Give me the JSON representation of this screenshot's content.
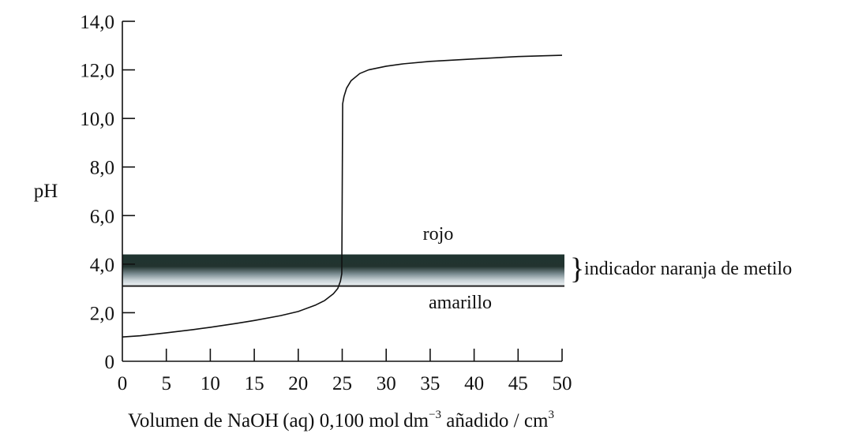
{
  "chart_data": {
    "type": "line",
    "title": "",
    "ylabel": "pH",
    "xlabel_parts": {
      "main": "Volumen de NaOH (aq) 0,100 mol dm",
      "exp1": "−3",
      "middle": " añadido / cm",
      "exp2": "3"
    },
    "xlim": [
      0,
      50
    ],
    "ylim": [
      0,
      14
    ],
    "x_ticks": [
      {
        "value": 0,
        "label": "0"
      },
      {
        "value": 5,
        "label": "5"
      },
      {
        "value": 10,
        "label": "10"
      },
      {
        "value": 15,
        "label": "15"
      },
      {
        "value": 20,
        "label": "20"
      },
      {
        "value": 25,
        "label": "25"
      },
      {
        "value": 30,
        "label": "30"
      },
      {
        "value": 35,
        "label": "35"
      },
      {
        "value": 40,
        "label": "40"
      },
      {
        "value": 45,
        "label": "45"
      },
      {
        "value": 50,
        "label": "50"
      }
    ],
    "y_ticks": [
      {
        "value": 0,
        "label": "0"
      },
      {
        "value": 2,
        "label": "2,0"
      },
      {
        "value": 4,
        "label": "4,0"
      },
      {
        "value": 6,
        "label": "6,0"
      },
      {
        "value": 8,
        "label": "8,0"
      },
      {
        "value": 10,
        "label": "10,0"
      },
      {
        "value": 12,
        "label": "12,0"
      },
      {
        "value": 14,
        "label": "14,0"
      }
    ],
    "grid": false,
    "series": [
      {
        "x": [
          0,
          2,
          5,
          8,
          10,
          13,
          15,
          18,
          20,
          22,
          23,
          24,
          24.5,
          24.8,
          24.95,
          25,
          25.05,
          25.2,
          25.5,
          26,
          27,
          28,
          30,
          32,
          35,
          40,
          45,
          48,
          50
        ],
        "y": [
          1.0,
          1.05,
          1.17,
          1.3,
          1.4,
          1.56,
          1.68,
          1.88,
          2.05,
          2.32,
          2.5,
          2.78,
          3.0,
          3.3,
          3.6,
          7.0,
          10.6,
          10.9,
          11.25,
          11.55,
          11.85,
          12.0,
          12.15,
          12.25,
          12.35,
          12.45,
          12.55,
          12.58,
          12.6
        ]
      }
    ],
    "indicator_band": {
      "y_low": 3.1,
      "y_high": 4.4,
      "label": "indicador naranja de metilo",
      "upper_label": "rojo",
      "lower_label": "amarillo"
    }
  }
}
